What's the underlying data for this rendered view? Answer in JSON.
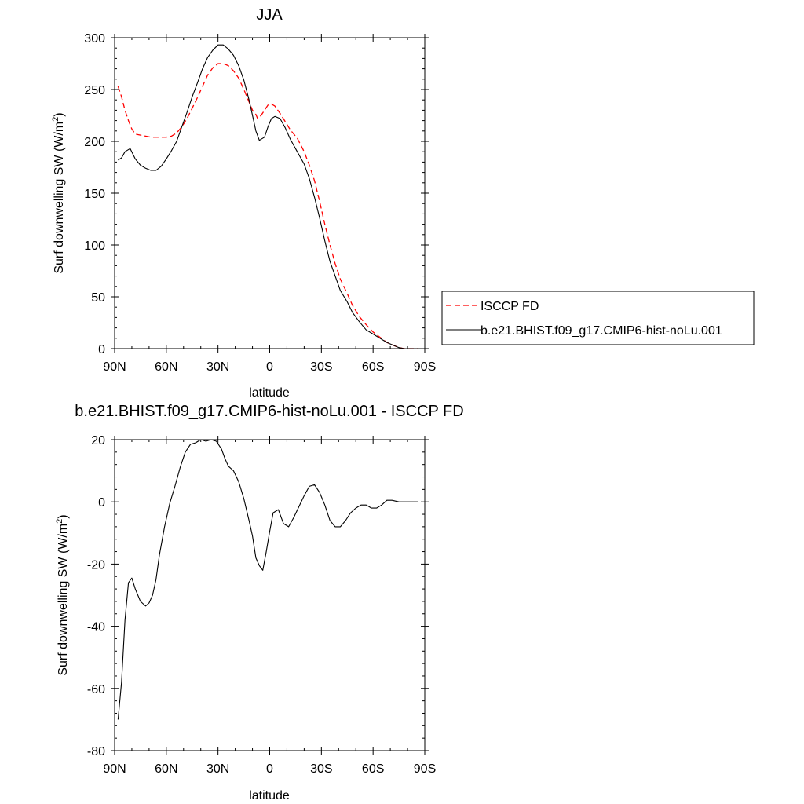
{
  "chart_data": [
    {
      "type": "line",
      "title": "JJA",
      "xlabel": "latitude",
      "ylabel": "Surf downwelling SW (W/m",
      "ylabel_sup": "2",
      "ylabel_tail": ")",
      "xlim": [
        90,
        -90
      ],
      "ylim": [
        0,
        300
      ],
      "xticks": [
        90,
        60,
        30,
        0,
        -30,
        -60,
        -90
      ],
      "xtick_labels": [
        "90N",
        "60N",
        "30N",
        "0",
        "30S",
        "60S",
        "90S"
      ],
      "yticks": [
        0,
        50,
        100,
        150,
        200,
        250,
        300
      ],
      "ytick_labels": [
        "0",
        "50",
        "100",
        "150",
        "200",
        "250",
        "300"
      ],
      "legend": "right",
      "series": [
        {
          "name": "ISCCP FD",
          "color": "#ff0000",
          "dash": "dashed",
          "points": [
            [
              88,
              253
            ],
            [
              86,
              243
            ],
            [
              84,
              230
            ],
            [
              82,
              220
            ],
            [
              80,
              212
            ],
            [
              78,
              207
            ],
            [
              75,
              206
            ],
            [
              72,
              205
            ],
            [
              69,
              204
            ],
            [
              66,
              204
            ],
            [
              63,
              204
            ],
            [
              60,
              204
            ],
            [
              57,
              205
            ],
            [
              54,
              208
            ],
            [
              51,
              214
            ],
            [
              48,
              222
            ],
            [
              45,
              232
            ],
            [
              42,
              242
            ],
            [
              39,
              253
            ],
            [
              36,
              264
            ],
            [
              33,
              271
            ],
            [
              30,
              275
            ],
            [
              27,
              275
            ],
            [
              24,
              273
            ],
            [
              21,
              268
            ],
            [
              18,
              261
            ],
            [
              15,
              250
            ],
            [
              12,
              238
            ],
            [
              10,
              230
            ],
            [
              8,
              226
            ],
            [
              7,
              222
            ],
            [
              5,
              225
            ],
            [
              3,
              230
            ],
            [
              1,
              235
            ],
            [
              -1,
              236
            ],
            [
              -3,
              234
            ],
            [
              -6,
              227
            ],
            [
              -9,
              219
            ],
            [
              -12,
              211
            ],
            [
              -16,
              203
            ],
            [
              -20,
              190
            ],
            [
              -23,
              177
            ],
            [
              -26,
              162
            ],
            [
              -29,
              142
            ],
            [
              -32,
              120
            ],
            [
              -35,
              100
            ],
            [
              -38,
              82
            ],
            [
              -41,
              67
            ],
            [
              -45,
              53
            ],
            [
              -48,
              42
            ],
            [
              -52,
              31
            ],
            [
              -56,
              23
            ],
            [
              -60,
              16
            ],
            [
              -64,
              11
            ],
            [
              -68,
              6
            ],
            [
              -72,
              3
            ],
            [
              -75,
              1
            ],
            [
              -78,
              0
            ],
            [
              -82,
              0
            ],
            [
              -86,
              0
            ]
          ]
        },
        {
          "name": "b.e21.BHIST.f09_g17.CMIP6-hist-noLu.001",
          "color": "#000000",
          "dash": "solid",
          "points": [
            [
              88,
              182
            ],
            [
              86,
              184
            ],
            [
              84,
              190
            ],
            [
              81,
              193
            ],
            [
              78,
              183
            ],
            [
              75,
              177
            ],
            [
              72,
              174
            ],
            [
              69,
              172
            ],
            [
              66,
              172
            ],
            [
              63,
              176
            ],
            [
              60,
              183
            ],
            [
              57,
              191
            ],
            [
              54,
              200
            ],
            [
              51,
              214
            ],
            [
              48,
              228
            ],
            [
              45,
              243
            ],
            [
              42,
              256
            ],
            [
              39,
              270
            ],
            [
              36,
              281
            ],
            [
              33,
              288
            ],
            [
              30,
              293
            ],
            [
              27,
              293
            ],
            [
              24,
              289
            ],
            [
              21,
              283
            ],
            [
              18,
              273
            ],
            [
              15,
              259
            ],
            [
              12,
              240
            ],
            [
              10,
              225
            ],
            [
              8,
              210
            ],
            [
              6,
              201
            ],
            [
              3,
              204
            ],
            [
              1,
              214
            ],
            [
              -1,
              222
            ],
            [
              -3,
              224
            ],
            [
              -6,
              222
            ],
            [
              -9,
              213
            ],
            [
              -12,
              202
            ],
            [
              -16,
              190
            ],
            [
              -20,
              178
            ],
            [
              -23,
              164
            ],
            [
              -26,
              146
            ],
            [
              -29,
              126
            ],
            [
              -32,
              104
            ],
            [
              -35,
              84
            ],
            [
              -38,
              70
            ],
            [
              -41,
              56
            ],
            [
              -45,
              45
            ],
            [
              -48,
              35
            ],
            [
              -52,
              26
            ],
            [
              -56,
              18
            ],
            [
              -60,
              14
            ],
            [
              -64,
              10
            ],
            [
              -68,
              6
            ],
            [
              -72,
              3
            ],
            [
              -75,
              1
            ],
            [
              -78,
              0
            ],
            [
              -82,
              0
            ],
            [
              -86,
              0
            ]
          ]
        }
      ]
    },
    {
      "type": "line",
      "title": "b.e21.BHIST.f09_g17.CMIP6-hist-noLu.001 - ISCCP FD",
      "xlabel": "latitude",
      "ylabel": "Surf downwelling SW (W/m",
      "ylabel_sup": "2",
      "ylabel_tail": ")",
      "xlim": [
        90,
        -90
      ],
      "ylim": [
        -80,
        20
      ],
      "xticks": [
        90,
        60,
        30,
        0,
        -30,
        -60,
        -90
      ],
      "xtick_labels": [
        "90N",
        "60N",
        "30N",
        "0",
        "30S",
        "60S",
        "90S"
      ],
      "yticks": [
        -80,
        -60,
        -40,
        -20,
        0,
        20
      ],
      "ytick_labels": [
        "-80",
        "-60",
        "-40",
        "-20",
        "0",
        "20"
      ],
      "series": [
        {
          "color": "#000000",
          "dash": "solid",
          "points": [
            [
              88,
              -70
            ],
            [
              86,
              -58
            ],
            [
              84,
              -38
            ],
            [
              82,
              -26
            ],
            [
              80,
              -24.5
            ],
            [
              78,
              -28
            ],
            [
              75,
              -32
            ],
            [
              72,
              -33.5
            ],
            [
              70,
              -32.5
            ],
            [
              68,
              -30
            ],
            [
              66,
              -25
            ],
            [
              64,
              -17
            ],
            [
              61,
              -8
            ],
            [
              58,
              -0.5
            ],
            [
              55,
              5
            ],
            [
              52,
              11
            ],
            [
              49,
              16
            ],
            [
              46,
              18.5
            ],
            [
              43,
              19
            ],
            [
              40,
              20
            ],
            [
              37,
              19.5
            ],
            [
              34,
              20
            ],
            [
              31,
              19.5
            ],
            [
              28,
              17
            ],
            [
              26,
              14
            ],
            [
              24,
              11.5
            ],
            [
              21,
              10
            ],
            [
              18,
              6.5
            ],
            [
              15,
              1
            ],
            [
              12,
              -6
            ],
            [
              10,
              -11
            ],
            [
              8,
              -18
            ],
            [
              6,
              -20.5
            ],
            [
              4,
              -22
            ],
            [
              2,
              -16
            ],
            [
              0,
              -9.5
            ],
            [
              -2,
              -3.5
            ],
            [
              -5,
              -2.5
            ],
            [
              -8,
              -7
            ],
            [
              -11,
              -8
            ],
            [
              -14,
              -5
            ],
            [
              -17,
              -1.5
            ],
            [
              -20,
              2
            ],
            [
              -23,
              5
            ],
            [
              -26,
              5.5
            ],
            [
              -29,
              3
            ],
            [
              -32,
              -1
            ],
            [
              -35,
              -6
            ],
            [
              -38,
              -8
            ],
            [
              -41,
              -8
            ],
            [
              -44,
              -6
            ],
            [
              -47,
              -3.5
            ],
            [
              -50,
              -2
            ],
            [
              -53,
              -1
            ],
            [
              -56,
              -1
            ],
            [
              -59,
              -2
            ],
            [
              -62,
              -2
            ],
            [
              -65,
              -1
            ],
            [
              -68,
              0.5
            ],
            [
              -71,
              0.5
            ],
            [
              -75,
              0
            ],
            [
              -80,
              0
            ],
            [
              -86,
              0
            ]
          ]
        }
      ]
    }
  ]
}
